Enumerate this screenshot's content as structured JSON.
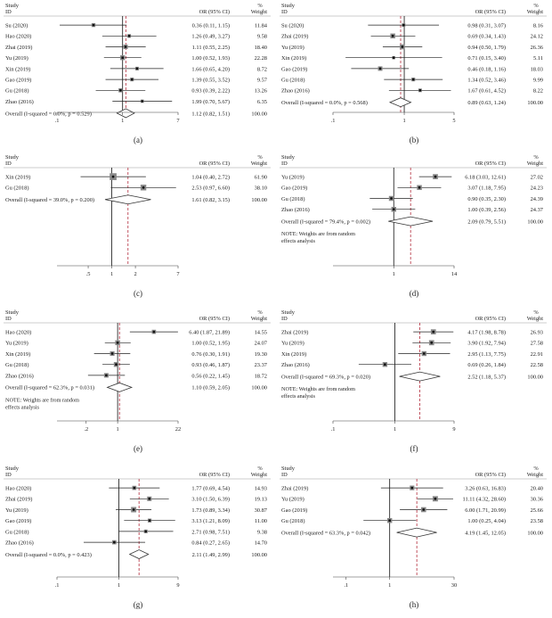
{
  "chart_data": [
    {
      "type": "forest",
      "label": "(a)",
      "header": {
        "study": "Study",
        "id": "ID",
        "or": "OR (95% CI)",
        "pct": "%",
        "weight": "Weight"
      },
      "studies": [
        {
          "name": "Su (2020)",
          "or": 0.36,
          "lo": 0.11,
          "hi": 1.15,
          "ci": "0.36 (0.11, 1.15)",
          "weight": "11.84"
        },
        {
          "name": "Hao (2020)",
          "or": 1.26,
          "lo": 0.49,
          "hi": 3.27,
          "ci": "1.26 (0.49, 3.27)",
          "weight": "9.58"
        },
        {
          "name": "Zhai (2019)",
          "or": 1.11,
          "lo": 0.55,
          "hi": 2.25,
          "ci": "1.11 (0.55, 2.25)",
          "weight": "18.40"
        },
        {
          "name": "Yu (2019)",
          "or": 1.0,
          "lo": 0.52,
          "hi": 1.93,
          "ci": "1.00 (0.52, 1.93)",
          "weight": "22.28"
        },
        {
          "name": "Xin (2019)",
          "or": 1.66,
          "lo": 0.65,
          "hi": 4.2,
          "ci": "1.66 (0.65, 4.20)",
          "weight": "8.72"
        },
        {
          "name": "Gao (2019)",
          "or": 1.39,
          "lo": 0.55,
          "hi": 3.52,
          "ci": "1.39 (0.55, 3.52)",
          "weight": "9.57"
        },
        {
          "name": "Gu (2018)",
          "or": 0.93,
          "lo": 0.39,
          "hi": 2.22,
          "ci": "0.93 (0.39, 2.22)",
          "weight": "13.26"
        },
        {
          "name": "Zhao (2016)",
          "or": 1.99,
          "lo": 0.7,
          "hi": 5.67,
          "ci": "1.99 (0.70, 5.67)",
          "weight": "6.35"
        }
      ],
      "overall": {
        "label": "Overall (I-squared = 0.0%, p = 0.529)",
        "or": 1.12,
        "lo": 0.82,
        "hi": 1.51,
        "ci": "1.12 (0.82, 1.51)",
        "weight": "100.00"
      },
      "note": [],
      "axis": {
        "min": 0.1,
        "max": 7,
        "ticks": [
          {
            "v": 0.1,
            "t": ".1"
          },
          {
            "v": 1,
            "t": "1"
          },
          {
            "v": 7,
            "t": "7"
          }
        ]
      }
    },
    {
      "type": "forest",
      "label": "(b)",
      "header": {
        "study": "Study",
        "id": "ID",
        "or": "OR (95% CI)",
        "pct": "%",
        "weight": "Weight"
      },
      "studies": [
        {
          "name": "Su (2020)",
          "or": 0.98,
          "lo": 0.31,
          "hi": 3.07,
          "ci": "0.98 (0.31, 3.07)",
          "weight": "8.16"
        },
        {
          "name": "Zhai (2019)",
          "or": 0.69,
          "lo": 0.34,
          "hi": 1.43,
          "ci": "0.69 (0.34, 1.43)",
          "weight": "24.12"
        },
        {
          "name": "Yu (2019)",
          "or": 0.94,
          "lo": 0.5,
          "hi": 1.79,
          "ci": "0.94 (0.50, 1.79)",
          "weight": "26.36"
        },
        {
          "name": "Xin (2019)",
          "or": 0.71,
          "lo": 0.15,
          "hi": 3.4,
          "ci": "0.71 (0.15, 3.40)",
          "weight": "5.11"
        },
        {
          "name": "Gao (2019)",
          "or": 0.46,
          "lo": 0.18,
          "hi": 1.16,
          "ci": "0.46 (0.18, 1.16)",
          "weight": "18.03"
        },
        {
          "name": "Gu (2018)",
          "or": 1.34,
          "lo": 0.52,
          "hi": 3.46,
          "ci": "1.34 (0.52, 3.46)",
          "weight": "9.99"
        },
        {
          "name": "Zhao (2016)",
          "or": 1.67,
          "lo": 0.61,
          "hi": 4.52,
          "ci": "1.67 (0.61, 4.52)",
          "weight": "8.22"
        }
      ],
      "overall": {
        "label": "Overall (I-squared = 0.0%, p = 0.568)",
        "or": 0.89,
        "lo": 0.63,
        "hi": 1.24,
        "ci": "0.89 (0.63, 1.24)",
        "weight": "100.00"
      },
      "note": [],
      "axis": {
        "min": 0.1,
        "max": 5,
        "ticks": [
          {
            "v": 0.1,
            "t": ".1"
          },
          {
            "v": 1,
            "t": "1"
          },
          {
            "v": 5,
            "t": "5"
          }
        ]
      }
    },
    {
      "type": "forest",
      "label": "(c)",
      "header": {
        "study": "Study",
        "id": "ID",
        "or": "OR (95% CI)",
        "pct": "%",
        "weight": "Weight"
      },
      "studies": [
        {
          "name": "Xin (2019)",
          "or": 1.04,
          "lo": 0.4,
          "hi": 2.72,
          "ci": "1.04 (0.40, 2.72)",
          "weight": "61.90"
        },
        {
          "name": "Gu (2018)",
          "or": 2.53,
          "lo": 0.97,
          "hi": 6.6,
          "ci": "2.53 (0.97, 6.60)",
          "weight": "38.10"
        }
      ],
      "overall": {
        "label": "Overall (I-squared = 39.0%, p = 0.200)",
        "or": 1.61,
        "lo": 0.82,
        "hi": 3.15,
        "ci": "1.61 (0.82, 3.15)",
        "weight": "100.00"
      },
      "note": [],
      "axis": {
        "min": 0.2,
        "max": 7,
        "ticks": [
          {
            "v": 0.5,
            "t": ".5"
          },
          {
            "v": 1,
            "t": "1"
          },
          {
            "v": 2,
            "t": "2"
          },
          {
            "v": 7,
            "t": "7"
          }
        ]
      }
    },
    {
      "type": "forest",
      "label": "(d)",
      "header": {
        "study": "Study",
        "id": "ID",
        "or": "OR (95% CI)",
        "pct": "%",
        "weight": "Weight"
      },
      "studies": [
        {
          "name": "Yu (2019)",
          "or": 6.18,
          "lo": 3.03,
          "hi": 12.61,
          "ci": "6.18 (3.03, 12.61)",
          "weight": "27.02"
        },
        {
          "name": "Gao (2019)",
          "or": 3.07,
          "lo": 1.18,
          "hi": 7.95,
          "ci": "3.07 (1.18, 7.95)",
          "weight": "24.23"
        },
        {
          "name": "Gu (2018)",
          "or": 0.9,
          "lo": 0.35,
          "hi": 2.3,
          "ci": "0.90 (0.35, 2.30)",
          "weight": "24.39"
        },
        {
          "name": "Zhao (2016)",
          "or": 1.0,
          "lo": 0.39,
          "hi": 2.56,
          "ci": "1.00 (0.39, 2.56)",
          "weight": "24.37"
        }
      ],
      "overall": {
        "label": "Overall (I-squared = 79.4%, p = 0.002)",
        "or": 2.09,
        "lo": 0.79,
        "hi": 5.51,
        "ci": "2.09 (0.79, 5.51)",
        "weight": "100.00"
      },
      "note": [
        "NOTE: Weights are from random",
        "effects analysis"
      ],
      "axis": {
        "min": 0.07,
        "max": 14,
        "ticks": [
          {
            "v": 1,
            "t": "1"
          },
          {
            "v": 14,
            "t": "14"
          }
        ]
      }
    },
    {
      "type": "forest",
      "label": "(e)",
      "header": {
        "study": "Study",
        "id": "ID",
        "or": "OR (95% CI)",
        "pct": "%",
        "weight": "Weight"
      },
      "studies": [
        {
          "name": "Hao (2020)",
          "or": 6.4,
          "lo": 1.87,
          "hi": 21.89,
          "ci": "6.40 (1.87, 21.89)",
          "weight": "14.55"
        },
        {
          "name": "Yu (2019)",
          "or": 1.0,
          "lo": 0.52,
          "hi": 1.95,
          "ci": "1.00 (0.52, 1.95)",
          "weight": "24.07"
        },
        {
          "name": "Xin (2019)",
          "or": 0.76,
          "lo": 0.3,
          "hi": 1.91,
          "ci": "0.76 (0.30, 1.91)",
          "weight": "19.30"
        },
        {
          "name": "Gu (2018)",
          "or": 0.93,
          "lo": 0.46,
          "hi": 1.87,
          "ci": "0.93 (0.46, 1.87)",
          "weight": "23.37"
        },
        {
          "name": "Zhao (2016)",
          "or": 0.56,
          "lo": 0.22,
          "hi": 1.45,
          "ci": "0.56 (0.22, 1.45)",
          "weight": "18.72"
        }
      ],
      "overall": {
        "label": "Overall (I-squared = 62.3%, p = 0.031)",
        "or": 1.1,
        "lo": 0.59,
        "hi": 2.05,
        "ci": "1.10 (0.59, 2.05)",
        "weight": "100.00"
      },
      "note": [
        "NOTE: Weights are from random",
        "effects analysis"
      ],
      "axis": {
        "min": 0.045,
        "max": 22,
        "ticks": [
          {
            "v": 0.2,
            "t": ".2"
          },
          {
            "v": 1,
            "t": "1"
          },
          {
            "v": 22,
            "t": "22"
          }
        ]
      }
    },
    {
      "type": "forest",
      "label": "(f)",
      "header": {
        "study": "Study",
        "id": "ID",
        "or": "OR (95% CI)",
        "pct": "%",
        "weight": "Weight"
      },
      "studies": [
        {
          "name": "Zhai (2019)",
          "or": 4.17,
          "lo": 1.98,
          "hi": 8.78,
          "ci": "4.17 (1.98, 8.78)",
          "weight": "26.93"
        },
        {
          "name": "Yu (2019)",
          "or": 3.9,
          "lo": 1.92,
          "hi": 7.94,
          "ci": "3.90 (1.92, 7.94)",
          "weight": "27.58"
        },
        {
          "name": "Xin (2019)",
          "or": 2.95,
          "lo": 1.13,
          "hi": 7.75,
          "ci": "2.95 (1.13, 7.75)",
          "weight": "22.91"
        },
        {
          "name": "Zhao (2016)",
          "or": 0.69,
          "lo": 0.26,
          "hi": 1.84,
          "ci": "0.69 (0.26, 1.84)",
          "weight": "22.58"
        }
      ],
      "overall": {
        "label": "Overall (I-squared = 69.3%, p = 0.020)",
        "or": 2.52,
        "lo": 1.18,
        "hi": 5.37,
        "ci": "2.52 (1.18, 5.37)",
        "weight": "100.00"
      },
      "note": [
        "NOTE: Weights are from random",
        "effects analysis"
      ],
      "axis": {
        "min": 0.1,
        "max": 9,
        "ticks": [
          {
            "v": 0.1,
            "t": ".1"
          },
          {
            "v": 1,
            "t": "1"
          },
          {
            "v": 9,
            "t": "9"
          }
        ]
      }
    },
    {
      "type": "forest",
      "label": "(g)",
      "header": {
        "study": "Study",
        "id": "ID",
        "or": "OR (95% CI)",
        "pct": "%",
        "weight": "Weight"
      },
      "studies": [
        {
          "name": "Hao (2020)",
          "or": 1.77,
          "lo": 0.69,
          "hi": 4.54,
          "ci": "1.77 (0.69, 4.54)",
          "weight": "14.93"
        },
        {
          "name": "Zhai (2019)",
          "or": 3.1,
          "lo": 1.5,
          "hi": 6.39,
          "ci": "3.10 (1.50, 6.39)",
          "weight": "19.13"
        },
        {
          "name": "Yu (2019)",
          "or": 1.73,
          "lo": 0.89,
          "hi": 3.34,
          "ci": "1.73 (0.89, 3.34)",
          "weight": "30.87"
        },
        {
          "name": "Gao (2019)",
          "or": 3.13,
          "lo": 1.21,
          "hi": 8.09,
          "ci": "3.13 (1.21, 8.09)",
          "weight": "11.00"
        },
        {
          "name": "Gu (2018)",
          "or": 2.71,
          "lo": 0.98,
          "hi": 7.51,
          "ci": "2.71 (0.98, 7.51)",
          "weight": "9.38"
        },
        {
          "name": "Zhao (2016)",
          "or": 0.84,
          "lo": 0.27,
          "hi": 2.65,
          "ci": "0.84 (0.27, 2.65)",
          "weight": "14.70"
        }
      ],
      "overall": {
        "label": "Overall (I-squared = 0.0%, p = 0.423)",
        "or": 2.11,
        "lo": 1.49,
        "hi": 2.99,
        "ci": "2.11 (1.49, 2.99)",
        "weight": "100.00"
      },
      "note": [],
      "axis": {
        "min": 0.1,
        "max": 9,
        "ticks": [
          {
            "v": 0.1,
            "t": ".1"
          },
          {
            "v": 1,
            "t": "1"
          },
          {
            "v": 9,
            "t": "9"
          }
        ]
      }
    },
    {
      "type": "forest",
      "label": "(h)",
      "header": {
        "study": "Study",
        "id": "ID",
        "or": "OR (95% CI)",
        "pct": "%",
        "weight": "Weight"
      },
      "studies": [
        {
          "name": "Zhai (2019)",
          "or": 3.26,
          "lo": 0.63,
          "hi": 16.83,
          "ci": "3.26 (0.63, 16.83)",
          "weight": "20.40"
        },
        {
          "name": "Yu (2019)",
          "or": 11.11,
          "lo": 4.32,
          "hi": 28.6,
          "ci": "11.11 (4.32, 28.60)",
          "weight": "30.36"
        },
        {
          "name": "Gao (2019)",
          "or": 6.0,
          "lo": 1.71,
          "hi": 20.99,
          "ci": "6.00 (1.71, 20.99)",
          "weight": "25.66"
        },
        {
          "name": "Gu (2018)",
          "or": 1.0,
          "lo": 0.25,
          "hi": 4.04,
          "ci": "1.00 (0.25, 4.04)",
          "weight": "23.58"
        }
      ],
      "overall": {
        "label": "Overall (I-squared = 63.3%, p = 0.042)",
        "or": 4.19,
        "lo": 1.45,
        "hi": 12.05,
        "ci": "4.19 (1.45, 12.05)",
        "weight": "100.00"
      },
      "note": [],
      "axis": {
        "min": 0.05,
        "max": 30,
        "ticks": [
          {
            "v": 0.1,
            "t": ".1"
          },
          {
            "v": 1,
            "t": "1"
          },
          {
            "v": 30,
            "t": "30"
          }
        ]
      }
    }
  ]
}
